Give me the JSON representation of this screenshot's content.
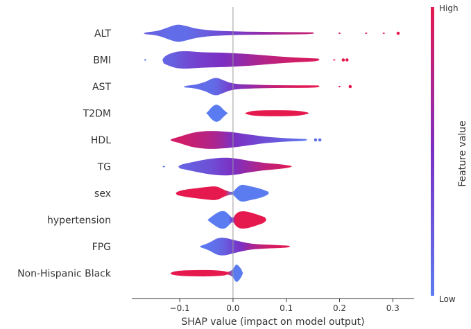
{
  "chart_data": {
    "type": "scatter",
    "subtype": "shap-beeswarm",
    "title": "",
    "xlabel": "SHAP value (impact on model output)",
    "ylabel": "",
    "xlim": [
      -0.19,
      0.34
    ],
    "xticks": [
      -0.1,
      0.0,
      0.1,
      0.2,
      0.3
    ],
    "xtick_labels": [
      "−0.1",
      "0.0",
      "0.1",
      "0.2",
      "0.3"
    ],
    "grid": false,
    "colorbar": {
      "title": "Feature value",
      "high_label": "High",
      "low_label": "Low",
      "low_color": "#5b7cf1",
      "mid_color": "#7b2fc3",
      "high_color": "#e6194f"
    },
    "features": [
      {
        "name": "ALT",
        "profile": [
          [
            -0.165,
            0.04,
            0.2
          ],
          [
            -0.14,
            0.25,
            0.15
          ],
          [
            -0.12,
            0.7,
            0.1
          ],
          [
            -0.105,
            1.0,
            0.1
          ],
          [
            -0.09,
            0.85,
            0.1
          ],
          [
            -0.07,
            0.5,
            0.15
          ],
          [
            -0.04,
            0.3,
            0.25
          ],
          [
            0.0,
            0.2,
            0.4
          ],
          [
            0.05,
            0.16,
            0.6
          ],
          [
            0.1,
            0.13,
            0.75
          ],
          [
            0.15,
            0.1,
            0.85
          ],
          [
            0.2,
            0.08,
            0.92
          ],
          [
            0.25,
            0.05,
            0.97
          ],
          [
            0.283,
            0.02,
            1.0
          ]
        ],
        "outliers": [
          [
            0.31,
            1.0
          ]
        ]
      },
      {
        "name": "BMI",
        "profile": [
          [
            -0.165,
            0.06,
            0.1
          ],
          [
            -0.13,
            0.4,
            0.15
          ],
          [
            -0.11,
            0.9,
            0.2
          ],
          [
            -0.09,
            1.0,
            0.3
          ],
          [
            -0.06,
            0.85,
            0.4
          ],
          [
            -0.02,
            0.8,
            0.5
          ],
          [
            0.0,
            0.75,
            0.55
          ],
          [
            0.04,
            0.62,
            0.7
          ],
          [
            0.08,
            0.4,
            0.82
          ],
          [
            0.12,
            0.25,
            0.9
          ],
          [
            0.16,
            0.15,
            0.95
          ],
          [
            0.19,
            0.06,
            1.0
          ]
        ],
        "outliers": [
          [
            0.207,
            1.0
          ],
          [
            0.214,
            1.0
          ]
        ]
      },
      {
        "name": "AST",
        "profile": [
          [
            -0.09,
            0.05,
            0.1
          ],
          [
            -0.07,
            0.2,
            0.1
          ],
          [
            -0.05,
            0.55,
            0.1
          ],
          [
            -0.04,
            0.9,
            0.1
          ],
          [
            -0.03,
            1.0,
            0.15
          ],
          [
            -0.02,
            0.75,
            0.25
          ],
          [
            0.0,
            0.3,
            0.45
          ],
          [
            0.04,
            0.2,
            0.65
          ],
          [
            0.08,
            0.15,
            0.85
          ],
          [
            0.12,
            0.14,
            0.95
          ],
          [
            0.16,
            0.12,
            1.0
          ],
          [
            0.2,
            0.08,
            1.0
          ]
        ],
        "outliers": [
          [
            0.22,
            1.0
          ]
        ]
      },
      {
        "name": "T2DM",
        "profile": [
          [
            -0.048,
            0.1,
            0.0
          ],
          [
            -0.04,
            0.7,
            0.0
          ],
          [
            -0.032,
            1.0,
            0.0
          ],
          [
            -0.025,
            0.85,
            0.0
          ],
          [
            -0.018,
            0.4,
            0.0
          ],
          [
            -0.012,
            0.05,
            0.0
          ],
          [
            0.025,
            0.05,
            1.0
          ],
          [
            0.04,
            0.3,
            1.0
          ],
          [
            0.08,
            0.35,
            1.0
          ],
          [
            0.12,
            0.3,
            1.0
          ],
          [
            0.14,
            0.1,
            1.0
          ]
        ],
        "outliers": []
      },
      {
        "name": "HDL",
        "profile": [
          [
            -0.115,
            0.12,
            0.9
          ],
          [
            -0.1,
            0.35,
            0.9
          ],
          [
            -0.08,
            0.75,
            0.85
          ],
          [
            -0.06,
            0.95,
            0.8
          ],
          [
            -0.04,
            1.0,
            0.75
          ],
          [
            -0.02,
            0.95,
            0.65
          ],
          [
            0.0,
            0.85,
            0.5
          ],
          [
            0.03,
            0.6,
            0.4
          ],
          [
            0.06,
            0.35,
            0.3
          ],
          [
            0.09,
            0.22,
            0.2
          ],
          [
            0.12,
            0.14,
            0.1
          ],
          [
            0.137,
            0.06,
            0.05
          ]
        ],
        "outliers": [
          [
            0.155,
            0.1
          ],
          [
            0.163,
            0.1
          ]
        ]
      },
      {
        "name": "TG",
        "profile": [
          [
            -0.13,
            0.05,
            0.1
          ],
          [
            -0.1,
            0.2,
            0.15
          ],
          [
            -0.08,
            0.45,
            0.2
          ],
          [
            -0.06,
            0.7,
            0.25
          ],
          [
            -0.04,
            0.9,
            0.3
          ],
          [
            -0.02,
            1.0,
            0.4
          ],
          [
            0.0,
            0.95,
            0.5
          ],
          [
            0.02,
            0.75,
            0.6
          ],
          [
            0.04,
            0.55,
            0.7
          ],
          [
            0.06,
            0.4,
            0.8
          ],
          [
            0.09,
            0.25,
            0.9
          ],
          [
            0.108,
            0.08,
            1.0
          ]
        ],
        "outliers": []
      },
      {
        "name": "sex",
        "profile": [
          [
            -0.105,
            0.2,
            1.0
          ],
          [
            -0.09,
            0.4,
            1.0
          ],
          [
            -0.07,
            0.55,
            1.0
          ],
          [
            -0.05,
            0.7,
            1.0
          ],
          [
            -0.03,
            0.8,
            1.0
          ],
          [
            -0.015,
            0.3,
            1.0
          ],
          [
            0.0,
            0.05,
            0.0
          ],
          [
            0.005,
            0.5,
            0.0
          ],
          [
            0.015,
            1.0,
            0.0
          ],
          [
            0.03,
            0.8,
            0.0
          ],
          [
            0.05,
            0.55,
            0.0
          ],
          [
            0.065,
            0.2,
            0.0
          ]
        ],
        "outliers": []
      },
      {
        "name": "hypertension",
        "profile": [
          [
            -0.045,
            0.15,
            0.0
          ],
          [
            -0.035,
            0.6,
            0.0
          ],
          [
            -0.025,
            0.95,
            0.0
          ],
          [
            -0.015,
            1.0,
            0.0
          ],
          [
            -0.008,
            0.6,
            0.0
          ],
          [
            0.0,
            0.1,
            0.5
          ],
          [
            0.005,
            0.7,
            1.0
          ],
          [
            0.015,
            1.0,
            1.0
          ],
          [
            0.03,
            0.9,
            1.0
          ],
          [
            0.045,
            0.6,
            1.0
          ],
          [
            0.06,
            0.3,
            1.0
          ]
        ],
        "outliers": []
      },
      {
        "name": "FPG",
        "profile": [
          [
            -0.06,
            0.1,
            0.0
          ],
          [
            -0.045,
            0.4,
            0.05
          ],
          [
            -0.03,
            0.95,
            0.1
          ],
          [
            -0.015,
            1.0,
            0.2
          ],
          [
            0.0,
            0.75,
            0.35
          ],
          [
            0.015,
            0.55,
            0.5
          ],
          [
            0.03,
            0.35,
            0.65
          ],
          [
            0.05,
            0.25,
            0.8
          ],
          [
            0.07,
            0.2,
            0.9
          ],
          [
            0.09,
            0.15,
            0.95
          ],
          [
            0.105,
            0.08,
            1.0
          ]
        ],
        "outliers": []
      },
      {
        "name": "Non-Hispanic Black",
        "profile": [
          [
            -0.115,
            0.15,
            1.0
          ],
          [
            -0.1,
            0.3,
            1.0
          ],
          [
            -0.07,
            0.35,
            1.0
          ],
          [
            -0.04,
            0.35,
            1.0
          ],
          [
            -0.015,
            0.25,
            1.0
          ],
          [
            -0.01,
            0.05,
            1.0
          ],
          [
            0.0,
            0.4,
            0.0
          ],
          [
            0.005,
            1.0,
            0.0
          ],
          [
            0.01,
            0.9,
            0.0
          ],
          [
            0.016,
            0.4,
            0.0
          ]
        ],
        "outliers": []
      }
    ]
  }
}
